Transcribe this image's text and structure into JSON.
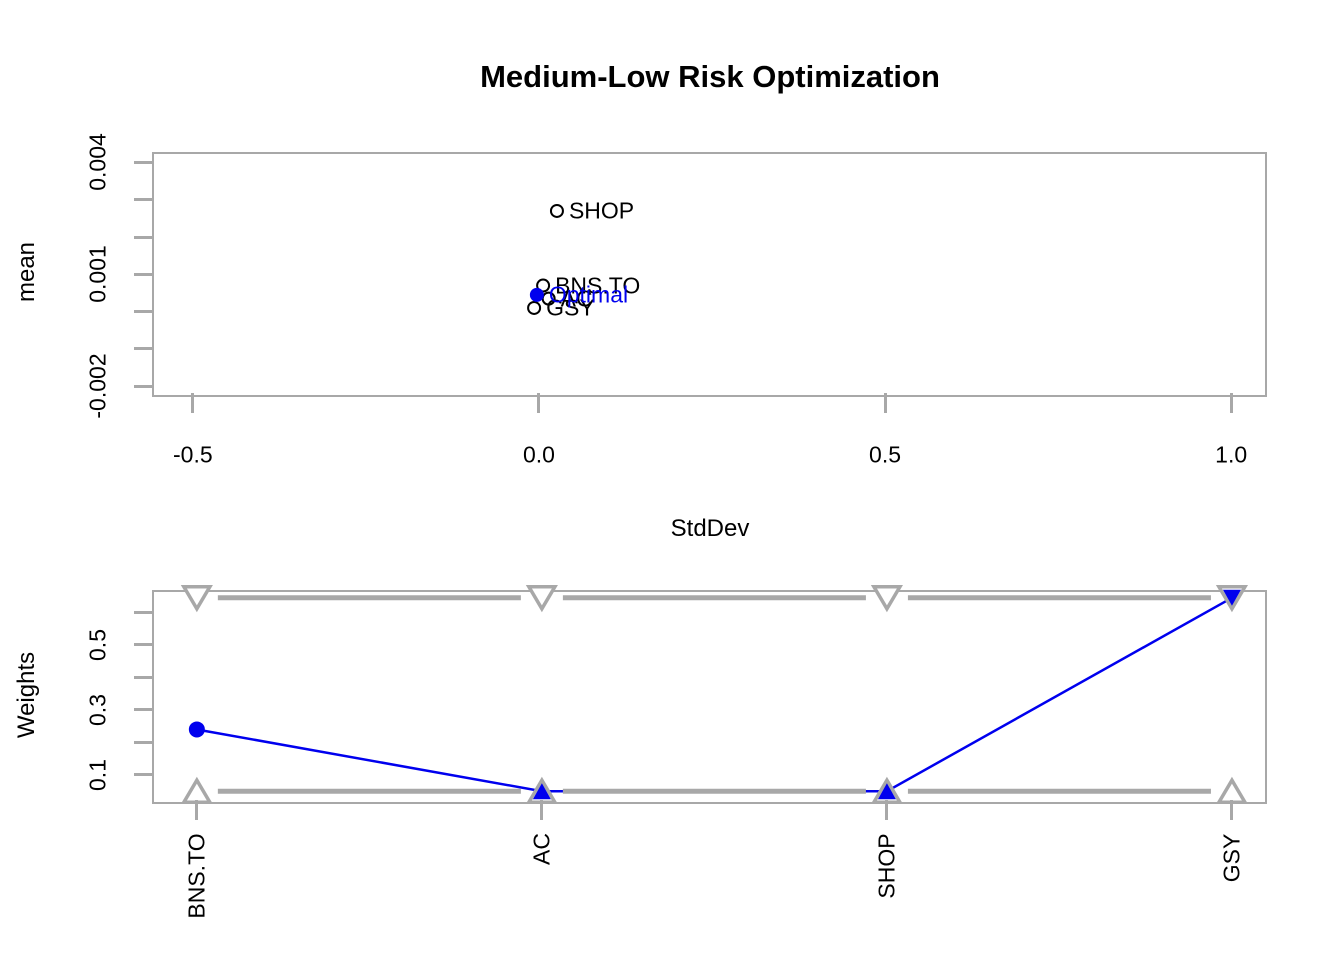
{
  "title": "Medium-Low Risk Optimization",
  "colors": {
    "blue": "#0000ee",
    "gray": "#a8a8a8",
    "black": "#000000"
  },
  "chart_data": [
    {
      "type": "scatter",
      "panel": "top",
      "xlabel": "StdDev",
      "ylabel": "mean",
      "xlim": [
        -0.559,
        1.046
      ],
      "ylim": [
        -0.00218,
        0.00428
      ],
      "xticks": [
        {
          "v": -0.5,
          "label": "-0.5"
        },
        {
          "v": 0.0,
          "label": "0.0"
        },
        {
          "v": 0.5,
          "label": "0.5"
        },
        {
          "v": 1.0,
          "label": "1.0"
        }
      ],
      "yticks": [
        {
          "v": -0.002,
          "label": "-0.002"
        },
        {
          "v": -0.001,
          "label": ""
        },
        {
          "v": 0.0,
          "label": ""
        },
        {
          "v": 0.001,
          "label": "0.001"
        },
        {
          "v": 0.002,
          "label": ""
        },
        {
          "v": 0.003,
          "label": ""
        },
        {
          "v": 0.004,
          "label": "0.004"
        }
      ],
      "points": [
        {
          "label": "SHOP",
          "x": 0.026,
          "y": 0.0027,
          "marker": "open-circle",
          "highlight": false
        },
        {
          "label": "BNS.TO",
          "x": 0.006,
          "y": 0.0007,
          "marker": "open-circle",
          "highlight": false
        },
        {
          "label": "AC",
          "x": 0.014,
          "y": 0.00035,
          "marker": "open-circle",
          "highlight": false
        },
        {
          "label": "GSY",
          "x": -0.007,
          "y": 0.0001,
          "marker": "open-circle",
          "highlight": false
        },
        {
          "label": "Optimal",
          "x": -0.003,
          "y": 0.00045,
          "marker": "filled-circle",
          "highlight": true
        }
      ]
    },
    {
      "type": "weights-line",
      "panel": "bottom",
      "ylabel": "Weights",
      "categories": [
        "BNS.TO",
        "AC",
        "SHOP",
        "GSY"
      ],
      "weights": [
        0.24,
        0.05,
        0.05,
        0.645
      ],
      "weight_markers": [
        "filled-circle",
        "up-triangle",
        "up-triangle",
        "down-triangle"
      ],
      "lower_bound": 0.05,
      "upper_bound": 0.645,
      "xlim": [
        0.87,
        4.09
      ],
      "ylim": [
        0.023,
        0.669
      ],
      "yticks": [
        {
          "v": 0.1,
          "label": "0.1"
        },
        {
          "v": 0.2,
          "label": ""
        },
        {
          "v": 0.3,
          "label": "0.3"
        },
        {
          "v": 0.4,
          "label": ""
        },
        {
          "v": 0.5,
          "label": "0.5"
        },
        {
          "v": 0.6,
          "label": ""
        }
      ]
    }
  ]
}
